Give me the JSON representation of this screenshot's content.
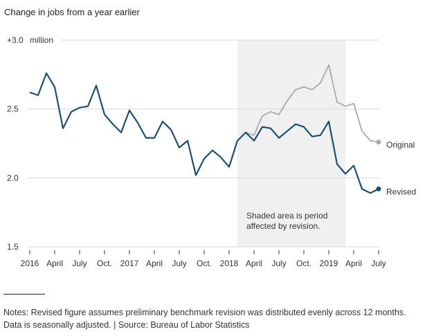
{
  "chart_data": {
    "type": "line",
    "title": "Change in jobs from a year earlier",
    "xlabel": "",
    "ylabel": "",
    "y_unit_label": "million",
    "ylim": [
      1.5,
      3.0
    ],
    "yticks": [
      {
        "value": 3.0,
        "label": "+3.0"
      },
      {
        "value": 2.5,
        "label": "2.5"
      },
      {
        "value": 2.0,
        "label": "2.0"
      },
      {
        "value": 1.5,
        "label": "1.5"
      }
    ],
    "grid": true,
    "xticks": [
      {
        "month_index": 0,
        "label": "2016"
      },
      {
        "month_index": 3,
        "label": "April"
      },
      {
        "month_index": 6,
        "label": "July"
      },
      {
        "month_index": 9,
        "label": "Oct."
      },
      {
        "month_index": 12,
        "label": "2017"
      },
      {
        "month_index": 15,
        "label": "April"
      },
      {
        "month_index": 18,
        "label": "July"
      },
      {
        "month_index": 21,
        "label": "Oct."
      },
      {
        "month_index": 24,
        "label": "2018"
      },
      {
        "month_index": 27,
        "label": "April"
      },
      {
        "month_index": 30,
        "label": "July"
      },
      {
        "month_index": 33,
        "label": "Oct."
      },
      {
        "month_index": 36,
        "label": "2019"
      },
      {
        "month_index": 39,
        "label": "April"
      },
      {
        "month_index": 42,
        "label": "July"
      }
    ],
    "x_start": "Jan 2016",
    "x_end": "Jul 2019",
    "shaded_region": {
      "start_month_index": 26,
      "end_month_index": 38,
      "label_lines": [
        "Shaded area is period",
        "affected by revision."
      ]
    },
    "series": [
      {
        "name": "Original",
        "color": "#aaaaaa",
        "start_month_index": 26,
        "values": [
          2.33,
          2.31,
          2.45,
          2.48,
          2.46,
          2.56,
          2.64,
          2.66,
          2.64,
          2.69,
          2.82,
          2.55,
          2.52,
          2.54,
          2.34,
          2.27,
          2.26
        ]
      },
      {
        "name": "Revised",
        "color": "#1b4f72",
        "start_month_index": 0,
        "values": [
          2.62,
          2.6,
          2.76,
          2.66,
          2.36,
          2.48,
          2.51,
          2.52,
          2.67,
          2.46,
          2.39,
          2.33,
          2.49,
          2.4,
          2.29,
          2.29,
          2.41,
          2.35,
          2.22,
          2.27,
          2.02,
          2.14,
          2.2,
          2.15,
          2.08,
          2.27,
          2.33,
          2.27,
          2.37,
          2.36,
          2.29,
          2.34,
          2.39,
          2.37,
          2.3,
          2.31,
          2.41,
          2.1,
          2.03,
          2.09,
          1.92,
          1.89,
          1.92
        ]
      }
    ],
    "legend": "end-of-line labels, right"
  },
  "notes": {
    "text": "Notes: Revised figure assumes preliminary benchmark revision was distributed evenly across 12 months. Data is seasonally adjusted. | Source: Bureau of Labor Statistics"
  }
}
